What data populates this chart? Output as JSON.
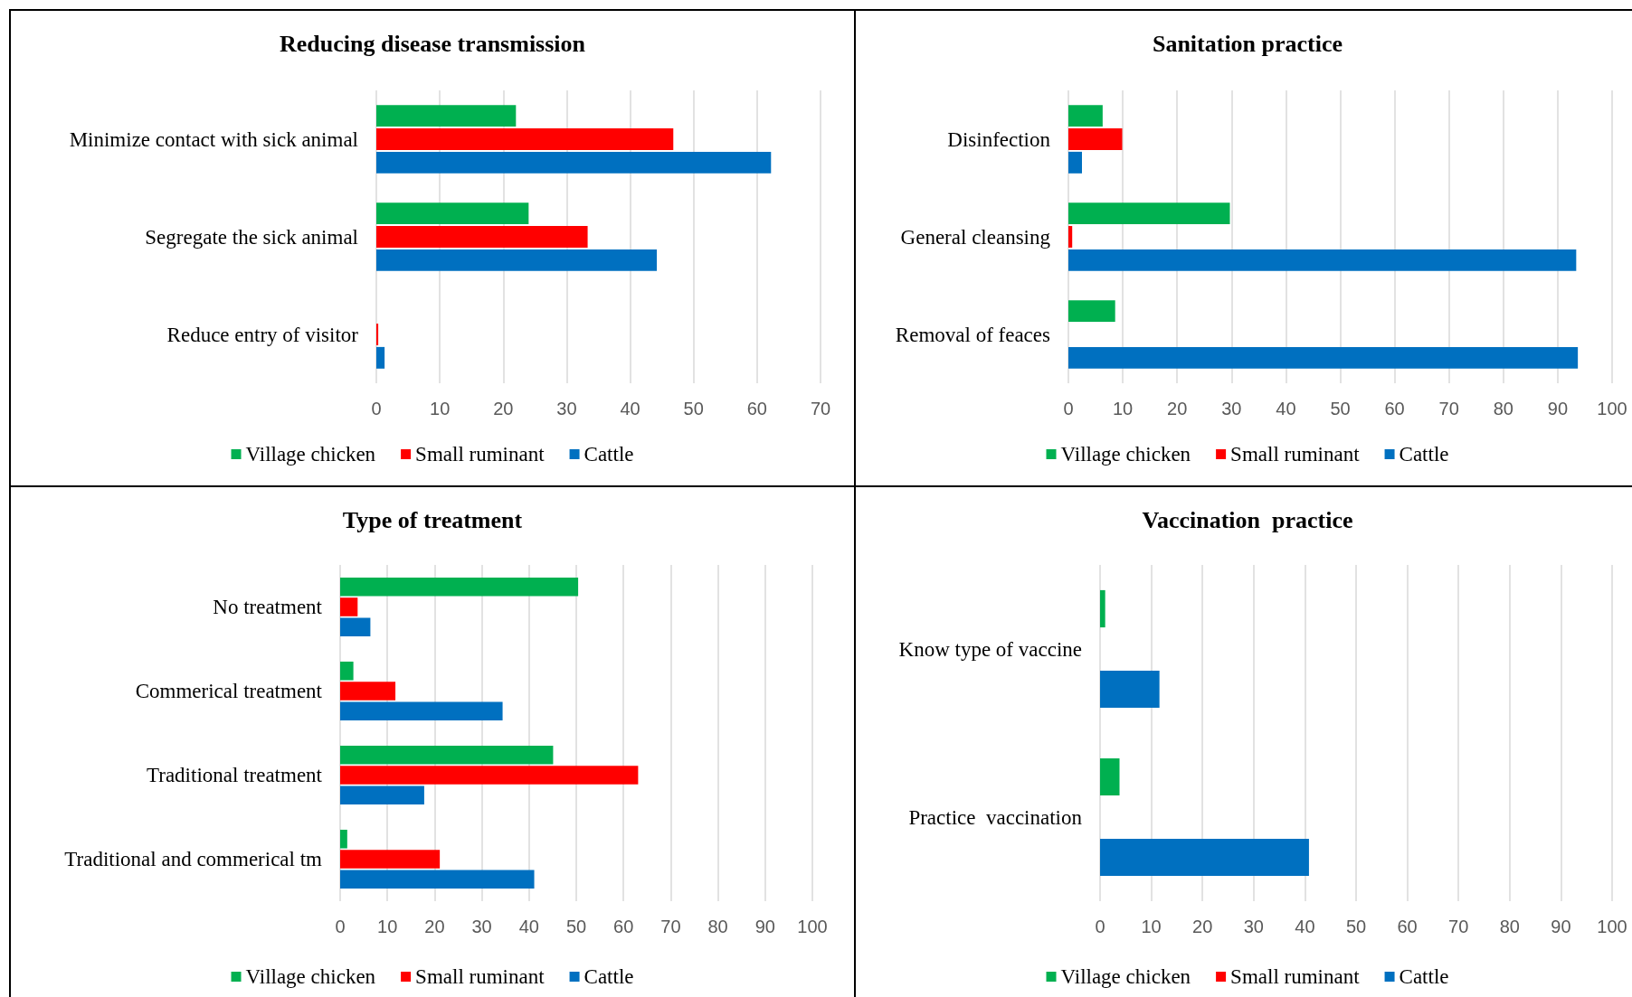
{
  "chart_data": [
    {
      "type": "bar",
      "orientation": "horizontal",
      "title": "Reducing disease transmission",
      "categories": [
        "Minimize contact with sick animal",
        "Segregate the sick animal",
        "Reduce entry of visitor"
      ],
      "series": [
        {
          "name": "Village chicken",
          "color": "#00b050",
          "values": [
            22.0,
            24.0,
            0
          ]
        },
        {
          "name": "Small ruminant",
          "color": "#ff0000",
          "values": [
            46.8,
            33.3,
            0.3
          ]
        },
        {
          "name": "Cattle",
          "color": "#0070c0",
          "values": [
            62.2,
            44.2,
            1.3
          ]
        }
      ],
      "xlim": [
        0,
        70
      ],
      "xticks": [
        0,
        10,
        20,
        30,
        40,
        50,
        60,
        70
      ],
      "grid": "x",
      "legend": "bottom"
    },
    {
      "type": "bar",
      "orientation": "horizontal",
      "title": "Sanitation practice",
      "categories": [
        "Disinfection",
        "General cleansing",
        "Removal of feaces"
      ],
      "series": [
        {
          "name": "Village chicken",
          "color": "#00b050",
          "values": [
            6.3,
            29.7,
            8.6
          ]
        },
        {
          "name": "Small ruminant",
          "color": "#ff0000",
          "values": [
            9.9,
            0.7,
            0
          ]
        },
        {
          "name": "Cattle",
          "color": "#0070c0",
          "values": [
            2.5,
            93.4,
            93.7
          ]
        }
      ],
      "xlim": [
        0,
        100
      ],
      "xticks": [
        0,
        10,
        20,
        30,
        40,
        50,
        60,
        70,
        80,
        90,
        100
      ],
      "grid": "x",
      "legend": "bottom"
    },
    {
      "type": "bar",
      "orientation": "horizontal",
      "title": "Type of treatment",
      "categories": [
        "No treatment",
        "Commerical treatment",
        "Traditional treatment",
        "Traditional and commerical tm"
      ],
      "series": [
        {
          "name": "Village chicken",
          "color": "#00b050",
          "values": [
            50.4,
            2.8,
            45.1,
            1.5
          ]
        },
        {
          "name": "Small ruminant",
          "color": "#ff0000",
          "values": [
            3.7,
            11.7,
            63.1,
            21.1
          ]
        },
        {
          "name": "Cattle",
          "color": "#0070c0",
          "values": [
            6.4,
            34.4,
            17.8,
            41.1
          ]
        }
      ],
      "xlim": [
        0,
        100
      ],
      "xticks": [
        0,
        10,
        20,
        30,
        40,
        50,
        60,
        70,
        80,
        90,
        100
      ],
      "grid": "x",
      "legend": "bottom"
    },
    {
      "type": "bar",
      "orientation": "horizontal",
      "title": "Vaccination  practice",
      "categories": [
        "Know type of vaccine",
        "Practice  vaccination"
      ],
      "series": [
        {
          "name": "Village chicken",
          "color": "#00b050",
          "values": [
            1.0,
            3.8
          ]
        },
        {
          "name": "Small ruminant",
          "color": "#ff0000",
          "values": [
            0,
            0
          ]
        },
        {
          "name": "Cattle",
          "color": "#0070c0",
          "values": [
            11.6,
            40.8
          ]
        }
      ],
      "xlim": [
        0,
        100
      ],
      "xticks": [
        0,
        10,
        20,
        30,
        40,
        50,
        60,
        70,
        80,
        90,
        100
      ],
      "grid": "x",
      "legend": "bottom"
    }
  ]
}
